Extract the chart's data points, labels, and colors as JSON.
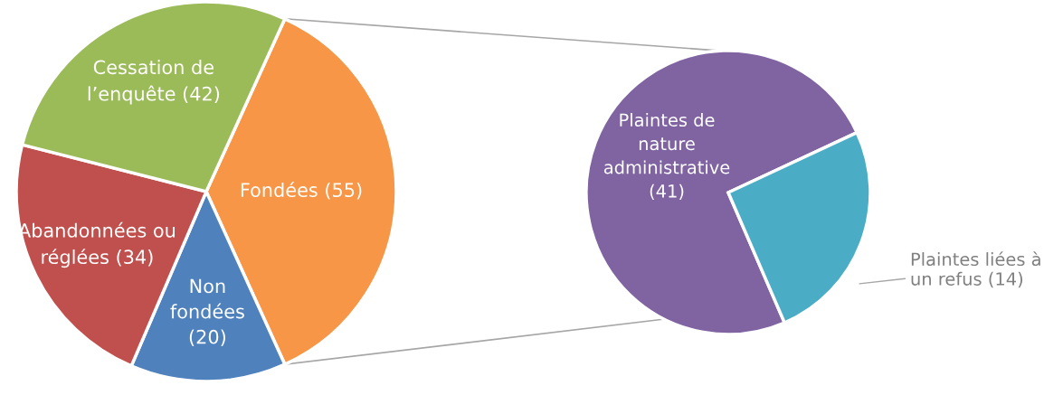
{
  "chart_data": [
    {
      "type": "pie",
      "categories": [
        "Fondées",
        "Non\nfondées",
        "Abandonnées ou\nréglées",
        "Cessation de\nl’enquête"
      ],
      "values": [
        55,
        20,
        34,
        42
      ],
      "value_labels": [
        "(55)",
        "(20)",
        "(34)",
        "(42)"
      ],
      "colors": [
        "#f79646",
        "#4f81bd",
        "#c0504d",
        "#9bbb59"
      ]
    },
    {
      "type": "pie",
      "categories": [
        "Plaintes de\nnature\nadministrative",
        "Plaintes liées à\nun refus"
      ],
      "values": [
        41,
        14
      ],
      "value_labels": [
        "(41)",
        "(14)"
      ],
      "colors": [
        "#8064a2",
        "#4bacc6"
      ]
    }
  ]
}
